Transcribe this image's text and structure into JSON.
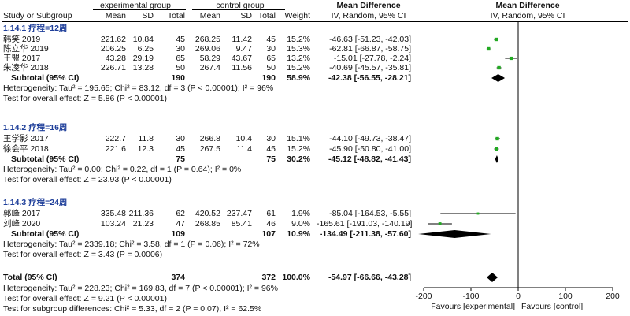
{
  "header": {
    "group_exp": "experimental group",
    "group_ctrl": "control group",
    "md_left": "Mean Difference",
    "md_right": "Mean Difference",
    "col_study": "Study or Subgroup",
    "col_mean": "Mean",
    "col_sd": "SD",
    "col_total": "Total",
    "col_weight": "Weight",
    "col_ci_left": "IV, Random, 95% CI",
    "col_ci_right": "IV, Random, 95% CI"
  },
  "subgroups": [
    {
      "label": "1.14.1 疗程=12周",
      "studies": [
        {
          "study": "韩笑 2019",
          "em": "221.62",
          "esd": "10.84",
          "en": "45",
          "cm": "268.25",
          "csd": "11.42",
          "cn": "45",
          "w": "15.2%",
          "ci": "-46.63 [-51.23, -42.03]"
        },
        {
          "study": "陈立华 2019",
          "em": "206.25",
          "esd": "6.25",
          "en": "30",
          "cm": "269.06",
          "csd": "9.47",
          "cn": "30",
          "w": "15.3%",
          "ci": "-62.81 [-66.87, -58.75]"
        },
        {
          "study": "王盟 2017",
          "em": "43.28",
          "esd": "29.19",
          "en": "65",
          "cm": "58.29",
          "csd": "43.67",
          "cn": "65",
          "w": "13.2%",
          "ci": "-15.01 [-27.78, -2.24]"
        },
        {
          "study": "朱凌华 2018",
          "em": "226.71",
          "esd": "13.28",
          "en": "50",
          "cm": "267.4",
          "csd": "11.56",
          "cn": "50",
          "w": "15.2%",
          "ci": "-40.69 [-45.57, -35.81]"
        }
      ],
      "subtotal": {
        "label": "Subtotal (95% CI)",
        "en": "190",
        "cn": "190",
        "w": "58.9%",
        "ci": "-42.38 [-56.55, -28.21]"
      },
      "heterogeneity": "Heterogeneity: Tau² = 195.65; Chi² = 83.12, df = 3 (P < 0.00001); I² = 96%",
      "overall": "Test for overall effect: Z = 5.86 (P < 0.00001)"
    },
    {
      "label": "1.14.2 疗程=16周",
      "studies": [
        {
          "study": "王学影 2017",
          "em": "222.7",
          "esd": "11.8",
          "en": "30",
          "cm": "266.8",
          "csd": "10.4",
          "cn": "30",
          "w": "15.1%",
          "ci": "-44.10 [-49.73, -38.47]"
        },
        {
          "study": "徐会平 2018",
          "em": "221.6",
          "esd": "12.3",
          "en": "45",
          "cm": "267.5",
          "csd": "11.4",
          "cn": "45",
          "w": "15.2%",
          "ci": "-45.90 [-50.80, -41.00]"
        }
      ],
      "subtotal": {
        "label": "Subtotal (95% CI)",
        "en": "75",
        "cn": "75",
        "w": "30.2%",
        "ci": "-45.12 [-48.82, -41.43]"
      },
      "heterogeneity": "Heterogeneity: Tau² = 0.00; Chi² = 0.22, df = 1 (P = 0.64); I² = 0%",
      "overall": "Test for overall effect: Z = 23.93 (P < 0.00001)"
    },
    {
      "label": "1.14.3 疗程=24周",
      "studies": [
        {
          "study": "郭峰 2017",
          "em": "335.48",
          "esd": "211.36",
          "en": "62",
          "cm": "420.52",
          "csd": "237.47",
          "cn": "61",
          "w": "1.9%",
          "ci": "-85.04 [-164.53, -5.55]"
        },
        {
          "study": "刘峰 2020",
          "em": "103.24",
          "esd": "21.23",
          "en": "47",
          "cm": "268.85",
          "csd": "85.41",
          "cn": "46",
          "w": "9.0%",
          "ci": "-165.61 [-191.03, -140.19]"
        }
      ],
      "subtotal": {
        "label": "Subtotal (95% CI)",
        "en": "109",
        "cn": "107",
        "w": "10.9%",
        "ci": "-134.49 [-211.38, -57.60]"
      },
      "heterogeneity": "Heterogeneity: Tau² = 2339.18; Chi² = 3.58, df = 1 (P = 0.06); I² = 72%",
      "overall": "Test for overall effect: Z = 3.43 (P = 0.0006)"
    }
  ],
  "total": {
    "label": "Total (95% CI)",
    "en": "374",
    "cn": "372",
    "w": "100.0%",
    "ci": "-54.97 [-66.66, -43.28]",
    "heterogeneity": "Heterogeneity: Tau² = 228.23; Chi² = 169.83, df = 7 (P < 0.00001); I² = 96%",
    "overall": "Test for overall effect: Z = 9.21 (P < 0.00001)",
    "subgroup_diff": "Test for subgroup differences: Chi² = 5.33, df = 2 (P = 0.07), I² = 62.5%"
  },
  "colors": {
    "point": "#22aa22",
    "diamond": "#000000",
    "heading": "#1f3f9a"
  },
  "chart_data": {
    "type": "forest",
    "xlim": [
      -200,
      200
    ],
    "xticks": [
      "-200",
      "-100",
      "0",
      "100",
      "200"
    ],
    "xlabel_left": "Favours [experimental]",
    "xlabel_right": "Favours [control]",
    "studies": [
      {
        "name": "韩笑 2019",
        "md": -46.63,
        "lo": -51.23,
        "hi": -42.03,
        "weight": 15.2
      },
      {
        "name": "陈立华 2019",
        "md": -62.81,
        "lo": -66.87,
        "hi": -58.75,
        "weight": 15.3
      },
      {
        "name": "王盟 2017",
        "md": -15.01,
        "lo": -27.78,
        "hi": -2.24,
        "weight": 13.2
      },
      {
        "name": "朱凌华 2018",
        "md": -40.69,
        "lo": -45.57,
        "hi": -35.81,
        "weight": 15.2
      },
      {
        "name": "王学影 2017",
        "md": -44.1,
        "lo": -49.73,
        "hi": -38.47,
        "weight": 15.1
      },
      {
        "name": "徐会平 2018",
        "md": -45.9,
        "lo": -50.8,
        "hi": -41.0,
        "weight": 15.2
      },
      {
        "name": "郭峰 2017",
        "md": -85.04,
        "lo": -164.53,
        "hi": -5.55,
        "weight": 1.9
      },
      {
        "name": "刘峰 2020",
        "md": -165.61,
        "lo": -191.03,
        "hi": -140.19,
        "weight": 9.0
      }
    ],
    "subtotals": [
      {
        "name": "1.14.1 疗程=12周",
        "md": -42.38,
        "lo": -56.55,
        "hi": -28.21
      },
      {
        "name": "1.14.2 疗程=16周",
        "md": -45.12,
        "lo": -48.82,
        "hi": -41.43
      },
      {
        "name": "1.14.3 疗程=24周",
        "md": -134.49,
        "lo": -211.38,
        "hi": -57.6
      }
    ],
    "total": {
      "name": "Total (95% CI)",
      "md": -54.97,
      "lo": -66.66,
      "hi": -43.28
    }
  }
}
